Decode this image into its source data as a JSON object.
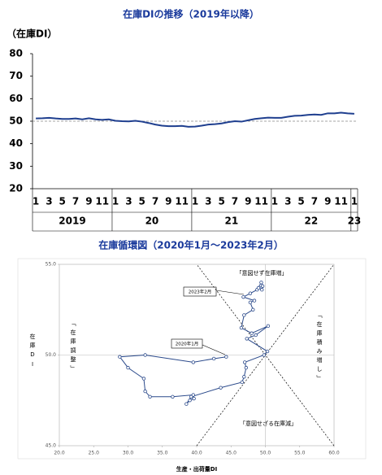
{
  "chart_data": [
    {
      "type": "line",
      "title": "在庫DIの推移（2019年以降）",
      "y_label": "（在庫DI）",
      "categories": [
        "1",
        null,
        "3",
        null,
        "5",
        null,
        "7",
        null,
        "9",
        null,
        "11",
        null,
        "1",
        null,
        "3",
        null,
        "5",
        null,
        "7",
        null,
        "9",
        null,
        "11",
        null,
        "1",
        null,
        "3",
        null,
        "5",
        null,
        "7",
        null,
        "9",
        null,
        "11",
        null,
        "1",
        null,
        "3",
        null,
        "5",
        null,
        "7",
        null,
        "9",
        null,
        "11",
        null,
        "1"
      ],
      "year_labels": [
        "2019",
        "20",
        "21",
        "22",
        "23"
      ],
      "values": [
        51.2,
        51.3,
        51.5,
        51.2,
        51,
        51,
        51.2,
        50.8,
        51.3,
        50.8,
        50.6,
        50.8,
        50.2,
        50,
        49.9,
        50.2,
        49.8,
        49.2,
        48.5,
        48,
        47.8,
        47.8,
        47.9,
        47.5,
        47.6,
        48,
        48.5,
        48.7,
        49,
        49.6,
        50,
        49.8,
        50.4,
        51,
        51.3,
        51.6,
        51.5,
        51.5,
        52,
        52.4,
        52.5,
        52.8,
        53,
        52.8,
        53.5,
        53.5,
        53.8,
        53.5,
        53.3
      ],
      "color": "#1f3f8f",
      "reference": 50,
      "ylim": [
        20,
        80
      ],
      "yticks": [
        20,
        30,
        40,
        50,
        60,
        70,
        80
      ]
    },
    {
      "type": "scatter",
      "title": "在庫循環図（2020年1月〜2023年2月）",
      "x_label": "生産・出荷量DI",
      "y_label": "在庫DI",
      "x": [
        44.3,
        42.5,
        39.5,
        32.5,
        28.8,
        30.0,
        32.3,
        32.5,
        33.2,
        36.5,
        39.5,
        39.6,
        39.0,
        38.5,
        39.2,
        43.5,
        46.6,
        46.9,
        47.2,
        47.0,
        49.8,
        50.3,
        47.3,
        48.6,
        50.4,
        48.0,
        46.5,
        46.9,
        48.2,
        47.8,
        48.4,
        46.8,
        47.8,
        48.8,
        49.4,
        49.6,
        49.0,
        49.5
      ],
      "values": [
        49.9,
        49.8,
        49.6,
        50.0,
        49.9,
        49.3,
        48.7,
        48.0,
        47.7,
        47.7,
        47.8,
        47.6,
        47.5,
        47.3,
        47.7,
        48.2,
        48.5,
        48.8,
        49.3,
        49.6,
        50.0,
        50.2,
        50.9,
        51.1,
        51.6,
        51.2,
        51.5,
        52.2,
        52.5,
        52.9,
        53.0,
        53.2,
        53.4,
        53.6,
        54.0,
        53.8,
        53.7,
        53.6
      ],
      "color": "#2b4a8b",
      "crosshair": [
        50,
        50
      ],
      "xlim": [
        20,
        60
      ],
      "xticks": [
        {
          "value": 20,
          "label": "20.0"
        },
        {
          "value": 25,
          "label": "25.0"
        },
        {
          "value": 30,
          "label": "30.0"
        },
        {
          "value": 35,
          "label": "35.0"
        },
        {
          "value": 40,
          "label": "40.0"
        },
        {
          "value": 45,
          "label": "45.0"
        },
        {
          "value": 50,
          "label": "50.0"
        },
        {
          "value": 55,
          "label": "55.0"
        },
        {
          "value": 60,
          "label": "60.0"
        }
      ],
      "ylim": [
        45,
        55
      ],
      "yticks": [
        {
          "value": 45,
          "label": "45.0"
        },
        {
          "value": 50,
          "label": "50.0"
        },
        {
          "value": 55,
          "label": "55.0"
        }
      ],
      "annotations": [
        "「意図せず在庫増」",
        "「在庫積み増し」",
        "「意図せざる在庫減」",
        "「在庫調整」"
      ],
      "callouts": [
        "2023年2月",
        "2020年1月"
      ]
    }
  ]
}
